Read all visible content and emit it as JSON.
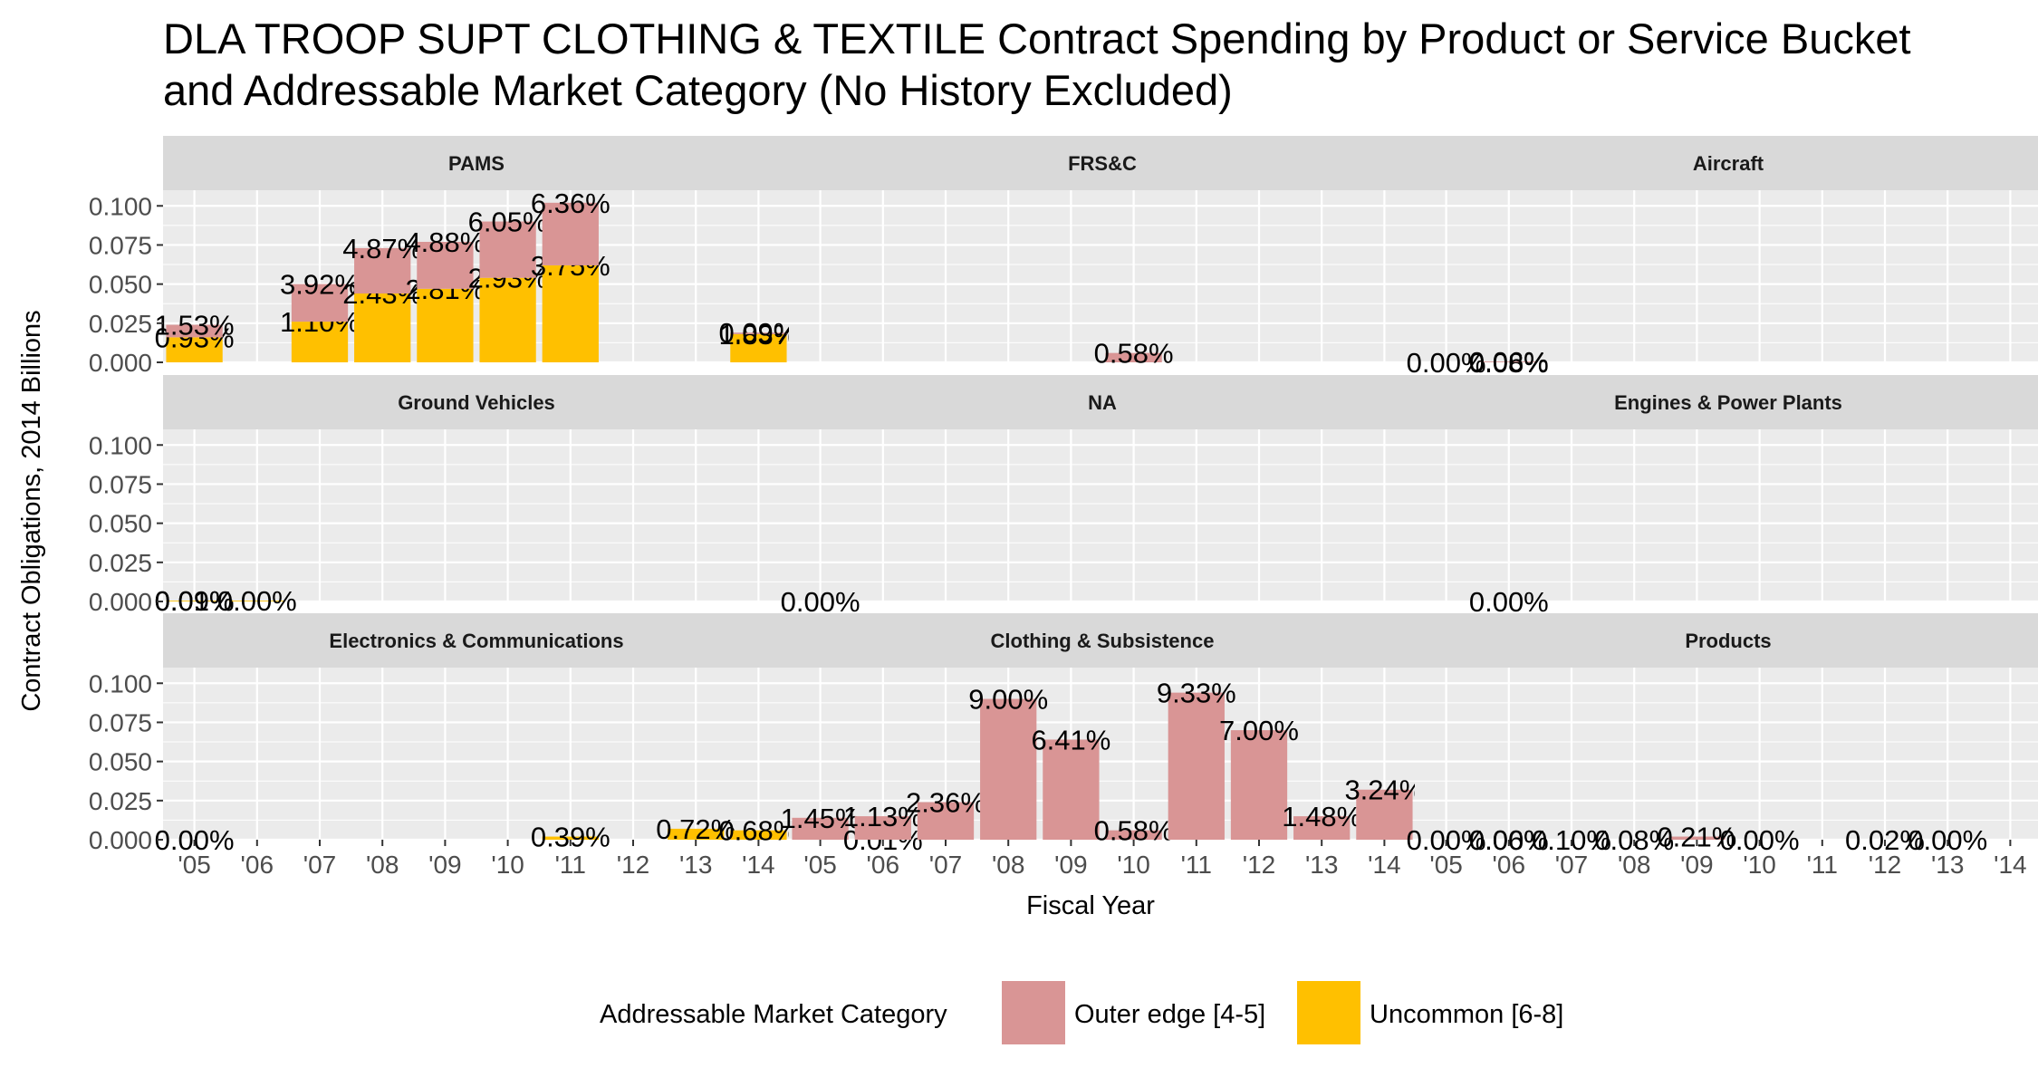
{
  "chart_data": {
    "type": "bar",
    "stacked": true,
    "faceted": true,
    "title_lines": [
      "DLA TROOP SUPT CLOTHING & TEXTILE Contract Spending by Product or Service Bucket",
      "and Addressable Market Category (No History Excluded)"
    ],
    "xlabel": "Fiscal Year",
    "ylabel": "Contract Obligations, 2014 Billions",
    "categories": [
      "'05",
      "'06",
      "'07",
      "'08",
      "'09",
      "'10",
      "'11",
      "'12",
      "'13",
      "'14"
    ],
    "ylim": [
      0,
      0.11
    ],
    "yticks": [
      "0.000",
      "0.025",
      "0.050",
      "0.075",
      "0.100"
    ],
    "grid": true,
    "legend": {
      "title": "Addressable Market Category",
      "position": "bottom",
      "entries": [
        "Outer edge [4-5]",
        "Uncommon [6-8]"
      ]
    },
    "colors": {
      "Outer edge [4-5]": "#d99595",
      "Uncommon [6-8]": "#ffc000"
    },
    "panels": [
      {
        "name": "PAMS",
        "bars": [
          {
            "x": "'05",
            "series": "Outer edge [4-5]",
            "value": 0.008,
            "label": "1.53%"
          },
          {
            "x": "'05",
            "series": "Uncommon [6-8]",
            "value": 0.016,
            "label": "0.93%"
          },
          {
            "x": "'07",
            "series": "Outer edge [4-5]",
            "value": 0.024,
            "label": "3.92%"
          },
          {
            "x": "'07",
            "series": "Uncommon [6-8]",
            "value": 0.026,
            "label": "1.10%"
          },
          {
            "x": "'08",
            "series": "Outer edge [4-5]",
            "value": 0.029,
            "label": "4.87%"
          },
          {
            "x": "'08",
            "series": "Uncommon [6-8]",
            "value": 0.044,
            "label": "2.43%"
          },
          {
            "x": "'09",
            "series": "Outer edge [4-5]",
            "value": 0.03,
            "label": "4.88%"
          },
          {
            "x": "'09",
            "series": "Uncommon [6-8]",
            "value": 0.047,
            "label": "2.81%"
          },
          {
            "x": "'10",
            "series": "Outer edge [4-5]",
            "value": 0.036,
            "label": "6.05%"
          },
          {
            "x": "'10",
            "series": "Uncommon [6-8]",
            "value": 0.054,
            "label": "2.93%"
          },
          {
            "x": "'11",
            "series": "Outer edge [4-5]",
            "value": 0.04,
            "label": "6.36%"
          },
          {
            "x": "'11",
            "series": "Uncommon [6-8]",
            "value": 0.062,
            "label": "3.75%"
          },
          {
            "x": "'14",
            "series": "Outer edge [4-5]",
            "value": 0.001,
            "label": "0.09%"
          },
          {
            "x": "'14",
            "series": "Uncommon [6-8]",
            "value": 0.018,
            "label": "1.83%"
          }
        ]
      },
      {
        "name": "FRS&C",
        "bars": [
          {
            "x": "'10",
            "series": "Outer edge [4-5]",
            "value": 0.006,
            "label": "0.58%"
          }
        ]
      },
      {
        "name": "Aircraft",
        "bars": [
          {
            "x": "'05",
            "series": "Outer edge [4-5]",
            "value": 0.0,
            "label": "0.00%"
          },
          {
            "x": "'06",
            "series": "Outer edge [4-5]",
            "value": 0.0005,
            "label": "0.06%"
          },
          {
            "x": "'06",
            "series": "Uncommon [6-8]",
            "value": 0.0,
            "label": "0.08%"
          }
        ]
      },
      {
        "name": "Ground Vehicles",
        "bars": [
          {
            "x": "'05",
            "series": "Outer edge [4-5]",
            "value": 0.0,
            "label": "0.01%"
          },
          {
            "x": "'05",
            "series": "Uncommon [6-8]",
            "value": 0.0005,
            "label": "0.09%"
          },
          {
            "x": "'06",
            "series": "Uncommon [6-8]",
            "value": 0.0005,
            "label": "0.00%"
          }
        ]
      },
      {
        "name": "NA",
        "bars": [
          {
            "x": "'05",
            "series": "Outer edge [4-5]",
            "value": 0.0,
            "label": "0.00%"
          }
        ]
      },
      {
        "name": "Engines & Power Plants",
        "bars": [
          {
            "x": "'06",
            "series": "Outer edge [4-5]",
            "value": 0.0,
            "label": "0.00%"
          }
        ]
      },
      {
        "name": "Electronics & Communications",
        "bars": [
          {
            "x": "'05",
            "series": "Outer edge [4-5]",
            "value": 0.0,
            "label": "0.00%"
          },
          {
            "x": "'11",
            "series": "Uncommon [6-8]",
            "value": 0.002,
            "label": "0.39%"
          },
          {
            "x": "'13",
            "series": "Uncommon [6-8]",
            "value": 0.007,
            "label": "0.72%"
          },
          {
            "x": "'14",
            "series": "Uncommon [6-8]",
            "value": 0.006,
            "label": "0.68%"
          }
        ]
      },
      {
        "name": "Clothing & Subsistence",
        "bars": [
          {
            "x": "'05",
            "series": "Outer edge [4-5]",
            "value": 0.014,
            "label": "1.45%"
          },
          {
            "x": "'06",
            "series": "Outer edge [4-5]",
            "value": 0.015,
            "label": "1.13%"
          },
          {
            "x": "'06",
            "series": "Uncommon [6-8]",
            "value": 0.0,
            "label": "0.01%"
          },
          {
            "x": "'07",
            "series": "Outer edge [4-5]",
            "value": 0.024,
            "label": "2.36%"
          },
          {
            "x": "'08",
            "series": "Outer edge [4-5]",
            "value": 0.09,
            "label": "9.00%"
          },
          {
            "x": "'09",
            "series": "Outer edge [4-5]",
            "value": 0.064,
            "label": "6.41%"
          },
          {
            "x": "'10",
            "series": "Outer edge [4-5]",
            "value": 0.006,
            "label": "0.58%"
          },
          {
            "x": "'11",
            "series": "Outer edge [4-5]",
            "value": 0.094,
            "label": "9.33%"
          },
          {
            "x": "'12",
            "series": "Outer edge [4-5]",
            "value": 0.07,
            "label": "7.00%"
          },
          {
            "x": "'13",
            "series": "Outer edge [4-5]",
            "value": 0.015,
            "label": "1.48%"
          },
          {
            "x": "'14",
            "series": "Outer edge [4-5]",
            "value": 0.032,
            "label": "3.24%"
          }
        ]
      },
      {
        "name": "Products",
        "bars": [
          {
            "x": "'05",
            "series": "Outer edge [4-5]",
            "value": 0.0,
            "label": "0.00%"
          },
          {
            "x": "'06",
            "series": "Outer edge [4-5]",
            "value": 0.0,
            "label": "0.00%"
          },
          {
            "x": "'06",
            "series": "Uncommon [6-8]",
            "value": 0.0,
            "label": "0.06%"
          },
          {
            "x": "'07",
            "series": "Outer edge [4-5]",
            "value": 0.0,
            "label": "0.10%"
          },
          {
            "x": "'08",
            "series": "Outer edge [4-5]",
            "value": 0.0,
            "label": "0.08%"
          },
          {
            "x": "'09",
            "series": "Outer edge [4-5]",
            "value": 0.002,
            "label": "0.21%"
          },
          {
            "x": "'10",
            "series": "Outer edge [4-5]",
            "value": 0.0,
            "label": "0.00%"
          },
          {
            "x": "'12",
            "series": "Outer edge [4-5]",
            "value": 0.0,
            "label": "0.02%"
          },
          {
            "x": "'13",
            "series": "Outer edge [4-5]",
            "value": 0.0,
            "label": "0.00%"
          }
        ]
      }
    ]
  }
}
